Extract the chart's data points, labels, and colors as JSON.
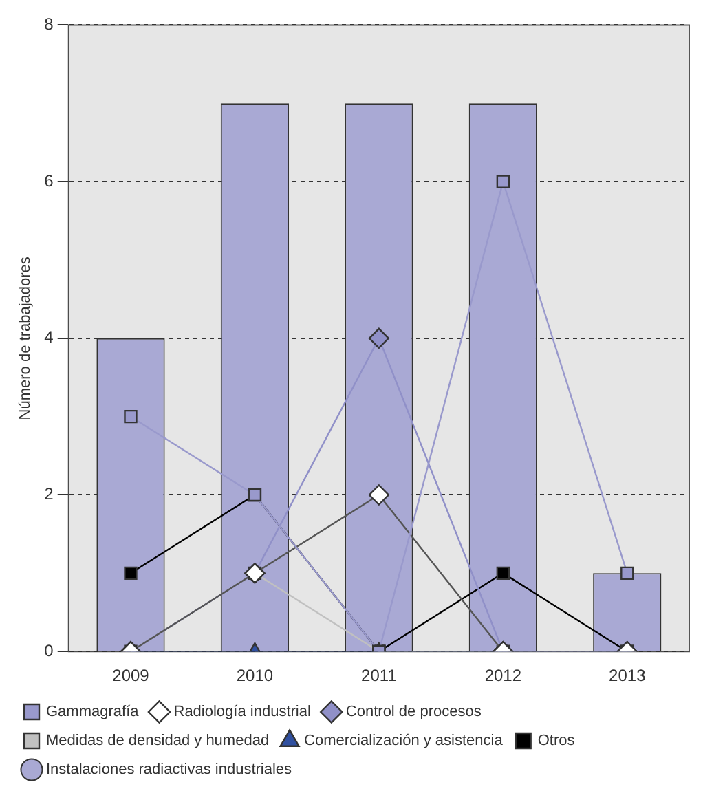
{
  "chart_data": {
    "type": "bar",
    "ylabel": "Número de trabajadores",
    "categories": [
      "2009",
      "2010",
      "2011",
      "2012",
      "2013"
    ],
    "ylim": [
      0,
      8
    ],
    "yticks": [
      0,
      2,
      4,
      6,
      8
    ],
    "grid": "y",
    "legend": "bottom",
    "series": [
      {
        "name": "Instalaciones radiactivas industriales",
        "color": "#a9a9d4",
        "values": [
          4,
          7,
          7,
          7,
          1
        ]
      },
      {
        "name": "Gammagrafía",
        "type": "line",
        "marker": "square",
        "color": "#9999cc",
        "values": [
          3,
          2,
          0,
          6,
          1
        ]
      },
      {
        "name": "Radiología industrial",
        "type": "line",
        "marker": "diamond",
        "color": "#ffffff",
        "values": [
          0,
          1,
          2,
          0,
          0
        ]
      },
      {
        "name": "Control de procesos",
        "type": "line",
        "marker": "diamond",
        "color": "#9090c8",
        "values": [
          0,
          1,
          4,
          0,
          0
        ]
      },
      {
        "name": "Medidas de densidad y humedad",
        "type": "line",
        "marker": "square",
        "color": "#c0c0c0",
        "values": [
          0,
          1,
          0,
          0,
          0
        ]
      },
      {
        "name": "Comercialización y asistencia",
        "type": "line",
        "marker": "triangle",
        "color": "#3050a0",
        "values": [
          0,
          0,
          0,
          0,
          0
        ]
      },
      {
        "name": "Otros",
        "type": "line",
        "marker": "square",
        "color": "#000000",
        "values": [
          1,
          2,
          0,
          1,
          0
        ]
      }
    ]
  }
}
